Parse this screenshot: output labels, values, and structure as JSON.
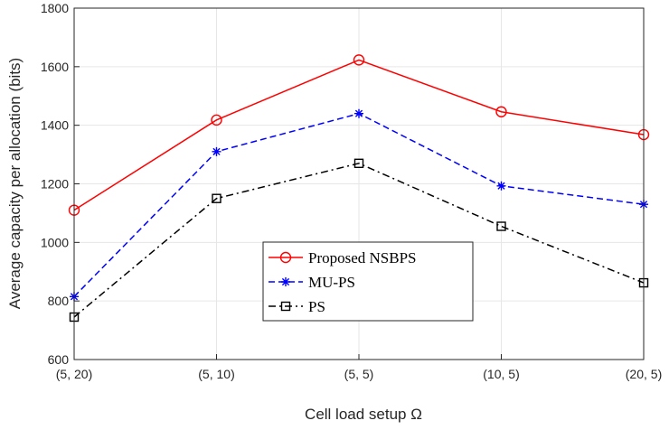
{
  "chart_data": {
    "type": "line",
    "title": "",
    "xlabel": "Cell load setup Ω",
    "ylabel": "Average capacity per allocation (bits)",
    "categories": [
      "(5, 20)",
      "(5, 10)",
      "(5, 5)",
      "(10, 5)",
      "(20, 5)"
    ],
    "ylim": [
      600,
      1800
    ],
    "yticks": [
      600,
      800,
      1000,
      1200,
      1400,
      1600,
      1800
    ],
    "grid": true,
    "legend_position": "center-bottom",
    "series": [
      {
        "name": "Proposed NSBPS",
        "values": [
          1110,
          1418,
          1623,
          1446,
          1368
        ],
        "color": "#ff0000",
        "marker": "circle",
        "dash": "solid"
      },
      {
        "name": "MU-PS",
        "values": [
          815,
          1310,
          1440,
          1193,
          1130
        ],
        "color": "#0000ff",
        "marker": "asterisk",
        "dash": "dashed"
      },
      {
        "name": "PS",
        "values": [
          745,
          1150,
          1270,
          1055,
          862
        ],
        "color": "#000000",
        "marker": "square",
        "dash": "dashdot"
      }
    ]
  }
}
